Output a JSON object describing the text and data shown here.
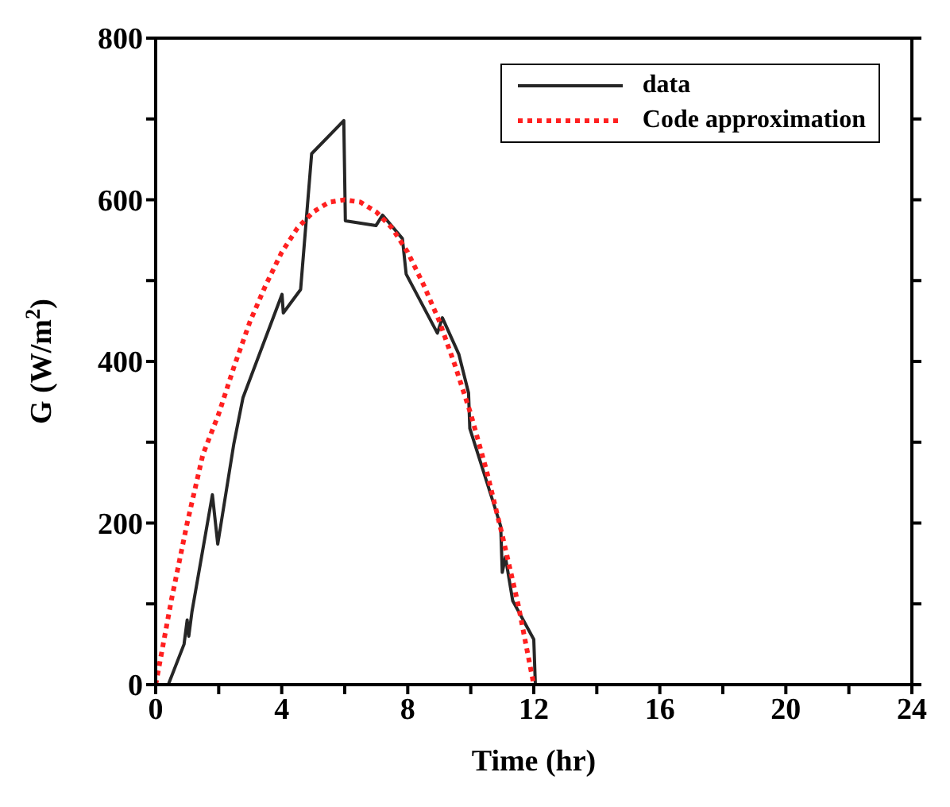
{
  "chart_data": {
    "type": "line",
    "xlabel": "Time (hr)",
    "ylabel": "G (W/m$^{2}$)",
    "xlim": [
      0,
      24
    ],
    "xticks": [
      0,
      {
        "value": 2,
        "label": null
      },
      4,
      {
        "value": 6,
        "label": null
      },
      8,
      {
        "value": 10,
        "label": null
      },
      12,
      {
        "value": 14,
        "label": null
      },
      16,
      {
        "value": 18,
        "label": null
      },
      20,
      {
        "value": 22,
        "label": null
      },
      24
    ],
    "ylim": [
      0,
      800
    ],
    "yticks": [
      0,
      {
        "value": 100,
        "label": null
      },
      200,
      {
        "value": 300,
        "label": null
      },
      400,
      {
        "value": 500,
        "label": null
      },
      600,
      {
        "value": 700,
        "label": null
      },
      800
    ],
    "legend": "top right",
    "marker": "none",
    "series": [
      {
        "name": "data",
        "color": "#262626",
        "line_style": "solid",
        "x": [
          0.4,
          0.9,
          1.0,
          1.05,
          1.15,
          1.8,
          1.97,
          2.48,
          2.77,
          4.01,
          4.05,
          4.6,
          4.95,
          5.97,
          6.02,
          6.99,
          7.2,
          7.83,
          7.95,
          8.94,
          9.1,
          9.62,
          9.93,
          9.97,
          10.8,
          10.95,
          11.0,
          11.1,
          11.33,
          12.0,
          12.05
        ],
        "values": [
          0,
          50,
          80,
          60,
          90,
          235,
          174,
          298,
          355,
          483,
          460,
          489,
          657,
          698,
          574,
          568,
          581,
          552,
          508,
          435,
          454,
          409,
          361,
          317,
          215,
          196,
          139,
          158,
          104,
          56,
          0
        ]
      },
      {
        "name": "Code approximation",
        "color": "#ff2020",
        "line_style": "dotted",
        "x": [
          0,
          0.5,
          1,
          1.5,
          2,
          2.5,
          3,
          3.5,
          4,
          4.5,
          5,
          5.5,
          6,
          6.5,
          7,
          7.5,
          8,
          8.5,
          9,
          9.5,
          10,
          10.5,
          11,
          11.5,
          12
        ],
        "values": [
          0,
          105,
          200,
          285,
          335,
          395,
          450,
          495,
          535,
          565,
          585,
          597,
          600,
          597,
          585,
          565,
          535,
          495,
          450,
          395,
          335,
          265,
          185,
          100,
          0
        ]
      }
    ]
  }
}
